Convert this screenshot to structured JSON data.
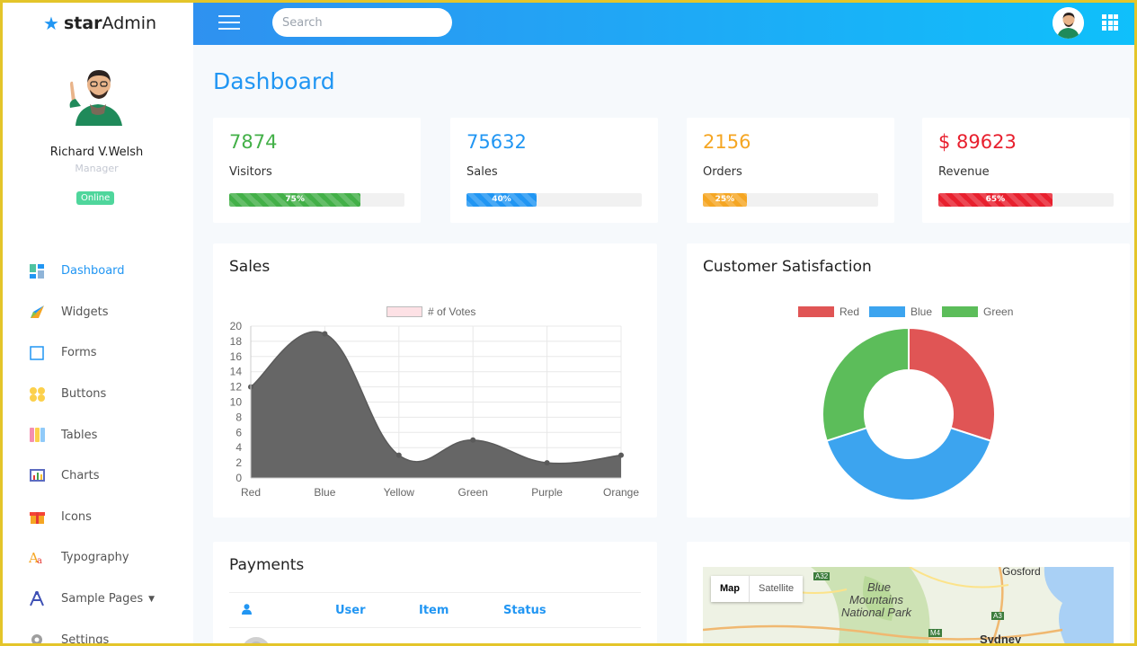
{
  "brand": {
    "name_bold": "star",
    "name_rest": "Admin",
    "icon": "star-icon"
  },
  "profile": {
    "name": "Richard V.Welsh",
    "role": "Manager",
    "status": "Online"
  },
  "sidebar": {
    "items": [
      {
        "label": "Dashboard",
        "icon": "dashboard-icon",
        "active": true
      },
      {
        "label": "Widgets",
        "icon": "widgets-icon"
      },
      {
        "label": "Forms",
        "icon": "forms-icon"
      },
      {
        "label": "Buttons",
        "icon": "buttons-icon"
      },
      {
        "label": "Tables",
        "icon": "tables-icon"
      },
      {
        "label": "Charts",
        "icon": "charts-icon"
      },
      {
        "label": "Icons",
        "icon": "gift-icon"
      },
      {
        "label": "Typography",
        "icon": "typography-icon"
      },
      {
        "label": "Sample Pages",
        "icon": "compass-icon",
        "has_dropdown": true
      },
      {
        "label": "Settings",
        "icon": "gear-icon"
      }
    ]
  },
  "navbar": {
    "search_placeholder": "Search"
  },
  "page_title": "Dashboard",
  "stats": [
    {
      "value": "7874",
      "label": "Visitors",
      "percent": 75,
      "percent_label": "75%",
      "color": "#43b048"
    },
    {
      "value": "75632",
      "label": "Sales",
      "percent": 40,
      "percent_label": "40%",
      "color": "#2196f3"
    },
    {
      "value": "2156",
      "label": "Orders",
      "percent": 25,
      "percent_label": "25%",
      "color": "#f5a623"
    },
    {
      "value": "$ 89623",
      "label": "Revenue",
      "percent": 65,
      "percent_label": "65%",
      "color": "#e8202e"
    }
  ],
  "sales_card": {
    "title": "Sales"
  },
  "satisfaction_card": {
    "title": "Customer Satisfaction"
  },
  "payments_card": {
    "title": "Payments",
    "headers": [
      "User",
      "Item",
      "Status"
    ],
    "user_icon": "user-icon"
  },
  "map": {
    "tabs": [
      "Map",
      "Satellite"
    ],
    "labels": [
      "Gosford",
      "Blue",
      "Mountains",
      "National Park",
      "Sydney",
      "A32",
      "A3",
      "M4"
    ]
  },
  "chart_data": [
    {
      "type": "area",
      "title": "",
      "categories": [
        "Red",
        "Blue",
        "Yellow",
        "Green",
        "Purple",
        "Orange"
      ],
      "series": [
        {
          "name": "# of Votes",
          "values": [
            12,
            19,
            3,
            5,
            2,
            3
          ]
        }
      ],
      "ylim": [
        0,
        20
      ],
      "yticks": [
        0,
        2,
        4,
        6,
        8,
        10,
        12,
        14,
        16,
        18,
        20
      ],
      "fill_color": "#666666",
      "legend_color": "#fde1e5",
      "grid": true,
      "legend": "top-center"
    },
    {
      "type": "pie",
      "subtype": "doughnut",
      "title": "",
      "categories": [
        "Red",
        "Blue",
        "Green"
      ],
      "values": [
        30,
        40,
        30
      ],
      "colors": [
        "#e05555",
        "#3ca4ef",
        "#5cbd5a"
      ],
      "legend": "top-center"
    }
  ]
}
